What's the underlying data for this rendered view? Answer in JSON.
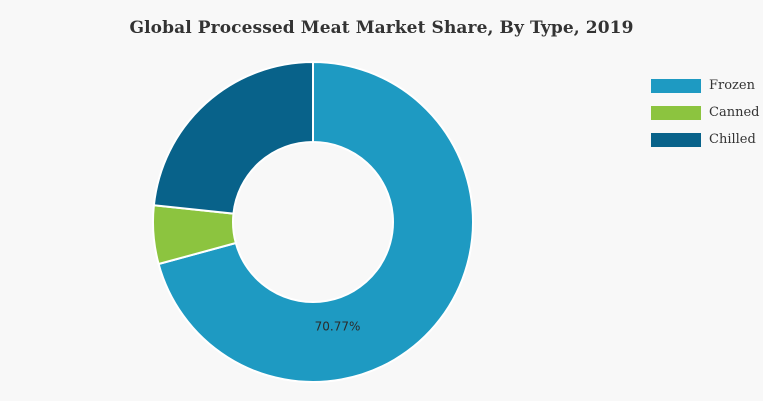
{
  "chart_data": {
    "type": "pie",
    "title": "Global Processed Meat Market Share, By Type, 2019",
    "categories": [
      "Frozen",
      "Canned",
      "Chilled"
    ],
    "values": [
      70.77,
      5.9,
      23.33
    ],
    "colors": [
      "#1e9ac2",
      "#8cc43f",
      "#08628a"
    ],
    "data_labels": [
      "70.77%",
      "",
      ""
    ],
    "legend_position": "top-right",
    "donut": true,
    "start_angle_deg": 0,
    "direction": "clockwise"
  },
  "legend": {
    "items": [
      {
        "label": "Frozen",
        "color": "#1e9ac2"
      },
      {
        "label": "Canned",
        "color": "#8cc43f"
      },
      {
        "label": "Chilled",
        "color": "#08628a"
      }
    ]
  }
}
